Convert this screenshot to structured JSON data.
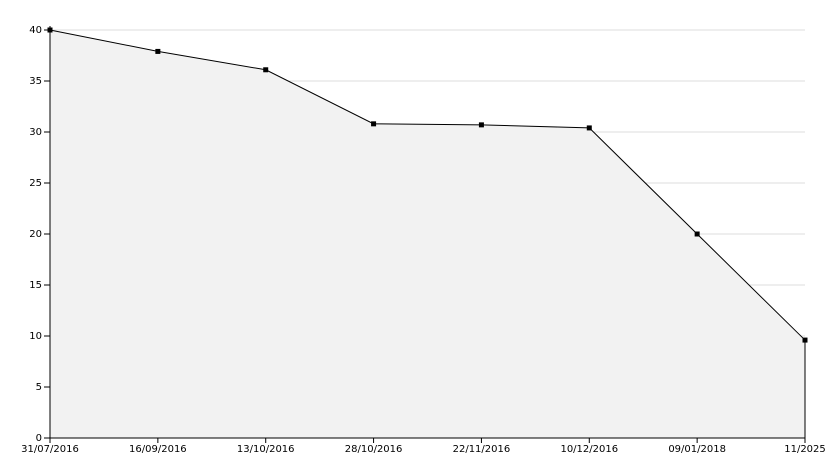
{
  "chart_data": {
    "type": "area",
    "categories": [
      "31/07/2016",
      "16/09/2016",
      "13/10/2016",
      "28/10/2016",
      "22/11/2016",
      "10/12/2016",
      "09/01/2018",
      "11/2025"
    ],
    "values": [
      40,
      37.9,
      36.1,
      30.8,
      30.7,
      30.4,
      20,
      9.6
    ],
    "color": "#000000",
    "fill": "#f2f2f2",
    "ylim": [
      0,
      40
    ],
    "yticks": [
      0,
      5,
      10,
      15,
      20,
      25,
      30,
      35,
      40
    ],
    "grid": true
  }
}
